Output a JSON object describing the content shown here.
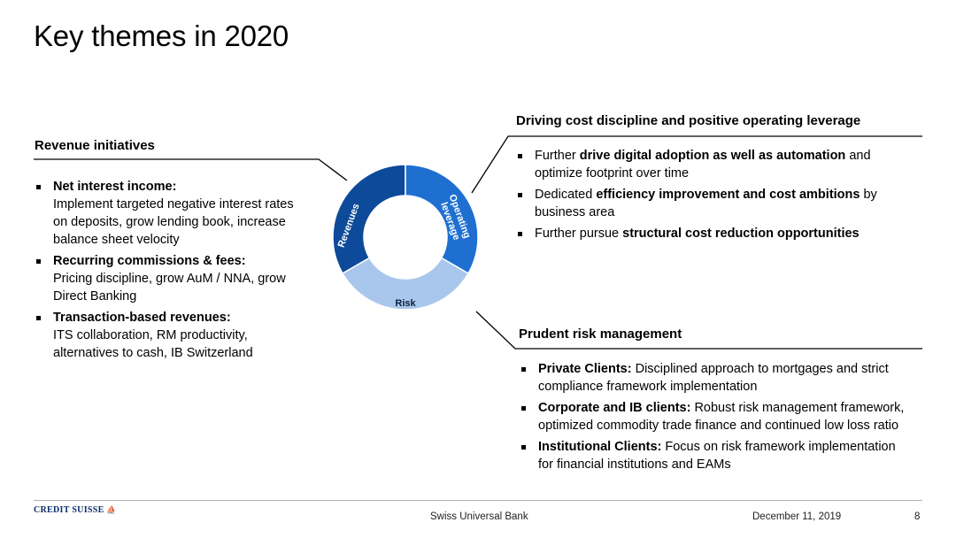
{
  "title": "Key themes in 2020",
  "revenue": {
    "heading": "Revenue initiatives",
    "items": [
      {
        "head": "Net interest income:",
        "body": "Implement targeted negative interest rates on deposits, grow lending book, increase balance sheet velocity"
      },
      {
        "head": "Recurring commissions & fees:",
        "body": "Pricing discipline, grow AuM / NNA, grow Direct Banking"
      },
      {
        "head": "Transaction-based revenues:",
        "body": "ITS collaboration, RM productivity, alternatives to cash, IB Switzerland"
      }
    ]
  },
  "cost": {
    "heading": "Driving cost discipline and positive operating leverage",
    "items": [
      {
        "pre": "Further ",
        "bold": "drive digital adoption as well as automation",
        "post": " and optimize footprint over time"
      },
      {
        "pre": "Dedicated ",
        "bold": "efficiency improvement and cost ambitions",
        "post": " by business area"
      },
      {
        "pre": "Further pursue ",
        "bold": "structural cost reduction opportunities",
        "post": ""
      }
    ]
  },
  "risk": {
    "heading": "Prudent risk management",
    "items": [
      {
        "bold": "Private Clients:",
        "post": " Disciplined approach to mortgages and strict compliance framework implementation"
      },
      {
        "bold": "Corporate and IB clients:",
        "post": " Robust risk management framework, optimized commodity trade finance and continued low loss ratio"
      },
      {
        "bold": "Institutional Clients:",
        "post": " Focus on risk framework implementation for financial institutions and EAMs"
      }
    ]
  },
  "donut": {
    "segments": [
      {
        "label": "Revenues",
        "color": "#0d4a9a"
      },
      {
        "label": "Operating leverage",
        "color": "#1f6fd1"
      },
      {
        "label": "Risk",
        "color": "#a9c7ec"
      }
    ],
    "revenues_label": "Revenues",
    "opex_line1": "Operating",
    "opex_line2": "leverage",
    "risk_label": "Risk"
  },
  "footer": {
    "logo": "CREDIT SUISSE",
    "center": "Swiss Universal Bank",
    "date": "December 11, 2019",
    "page": "8"
  }
}
